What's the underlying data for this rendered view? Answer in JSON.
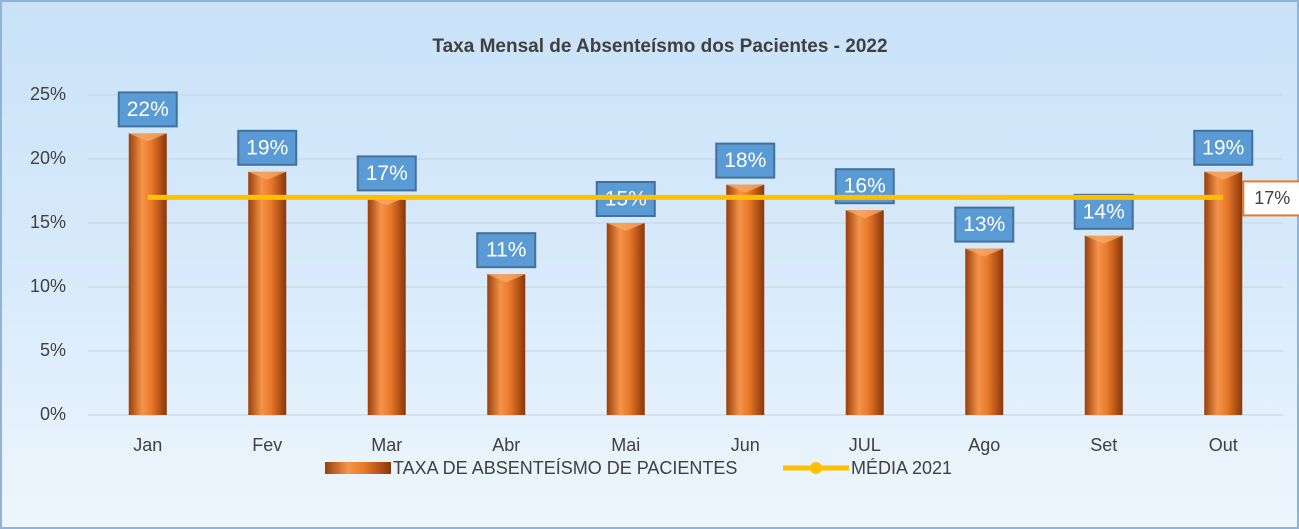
{
  "chart_data": {
    "type": "bar",
    "title": "Taxa Mensal de Absenteísmo dos Pacientes - 2022",
    "categories": [
      "Jan",
      "Fev",
      "Mar",
      "Abr",
      "Mai",
      "Jun",
      "JUL",
      "Ago",
      "Set",
      "Out"
    ],
    "series": [
      {
        "name": "TAXA DE ABSENTEÍSMO DE PACIENTES",
        "color": "#e8782a",
        "values": [
          22,
          19,
          17,
          11,
          15,
          18,
          16,
          13,
          14,
          19
        ],
        "value_labels": [
          "22%",
          "19%",
          "17%",
          "11%",
          "15%",
          "18%",
          "16%",
          "13%",
          "14%",
          "19%"
        ]
      },
      {
        "name": "MÉDIA 2021",
        "color": "#ffc000",
        "type": "line",
        "values": [
          17,
          17,
          17,
          17,
          17,
          17,
          17,
          17,
          17,
          17
        ],
        "value_labels": [
          null,
          null,
          null,
          null,
          null,
          null,
          null,
          null,
          null,
          "17%"
        ]
      }
    ],
    "ylim": [
      0,
      25
    ],
    "yticks": [
      {
        "value": 0,
        "label": "0%"
      },
      {
        "value": 5,
        "label": "5%"
      },
      {
        "value": 10,
        "label": "10%"
      },
      {
        "value": 15,
        "label": "15%"
      },
      {
        "value": 20,
        "label": "20%"
      },
      {
        "value": 25,
        "label": "25%"
      }
    ],
    "grid": true,
    "legend": "bottom"
  }
}
